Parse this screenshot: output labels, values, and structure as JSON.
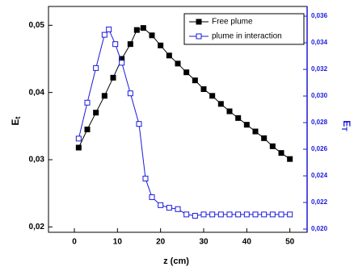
{
  "chart_data": {
    "type": "line",
    "x_label": "z (cm)",
    "y_label": {
      "main": "E",
      "sub": "t"
    },
    "y2_label": {
      "main": "E",
      "sub": "T"
    },
    "xlim": [
      -6,
      54
    ],
    "xticks": [
      0,
      10,
      20,
      30,
      40,
      50
    ],
    "ylim": [
      0.0192,
      0.0528
    ],
    "yticks": [
      {
        "value": 0.02,
        "label": "0,02"
      },
      {
        "value": 0.03,
        "label": "0,03"
      },
      {
        "value": 0.04,
        "label": "0,04"
      },
      {
        "value": 0.05,
        "label": "0,05"
      }
    ],
    "y2lim": [
      0.01976,
      0.03673
    ],
    "y2ticks": [
      {
        "value": 0.02,
        "label": "0,020"
      },
      {
        "value": 0.022,
        "label": "0,022"
      },
      {
        "value": 0.024,
        "label": "0,024"
      },
      {
        "value": 0.026,
        "label": "0,026"
      },
      {
        "value": 0.028,
        "label": "0,028"
      },
      {
        "value": 0.03,
        "label": "0,030"
      },
      {
        "value": 0.032,
        "label": "0,032"
      },
      {
        "value": 0.034,
        "label": "0,034"
      },
      {
        "value": 0.036,
        "label": "0,036"
      }
    ],
    "y2_color": "#1a1adc",
    "legend": "upper right",
    "series": [
      {
        "name": "Free plume",
        "color": "#000000",
        "marker": "filled",
        "x": [
          1,
          3,
          5,
          7,
          9,
          11,
          13,
          14.5,
          16,
          18,
          20,
          22,
          24,
          26,
          28,
          30,
          32,
          34,
          36,
          38,
          40,
          42,
          44,
          46,
          48,
          50
        ],
        "values": [
          0.0318,
          0.0345,
          0.037,
          0.0395,
          0.0422,
          0.045,
          0.0472,
          0.0493,
          0.0496,
          0.0485,
          0.047,
          0.0455,
          0.0443,
          0.043,
          0.0418,
          0.0405,
          0.0395,
          0.0383,
          0.0372,
          0.0362,
          0.0352,
          0.0342,
          0.0332,
          0.032,
          0.031,
          0.0301
        ]
      },
      {
        "name": "plume in interaction",
        "color": "#1a1adc",
        "marker": "open",
        "axis": "y2",
        "x": [
          1,
          3,
          5,
          7,
          8,
          9.5,
          11,
          13,
          15,
          16.5,
          18,
          20,
          22,
          24,
          26,
          28,
          30,
          32,
          34,
          36,
          38,
          40,
          42,
          44,
          46,
          48,
          50
        ],
        "values": [
          0.0268,
          0.0295,
          0.0321,
          0.0346,
          0.035,
          0.0339,
          0.0325,
          0.0302,
          0.0279,
          0.0238,
          0.0224,
          0.0218,
          0.0216,
          0.0215,
          0.0211,
          0.021,
          0.0211,
          0.0211,
          0.0211,
          0.0211,
          0.0211,
          0.0211,
          0.0211,
          0.0211,
          0.0211,
          0.0211,
          0.0211
        ]
      }
    ]
  }
}
